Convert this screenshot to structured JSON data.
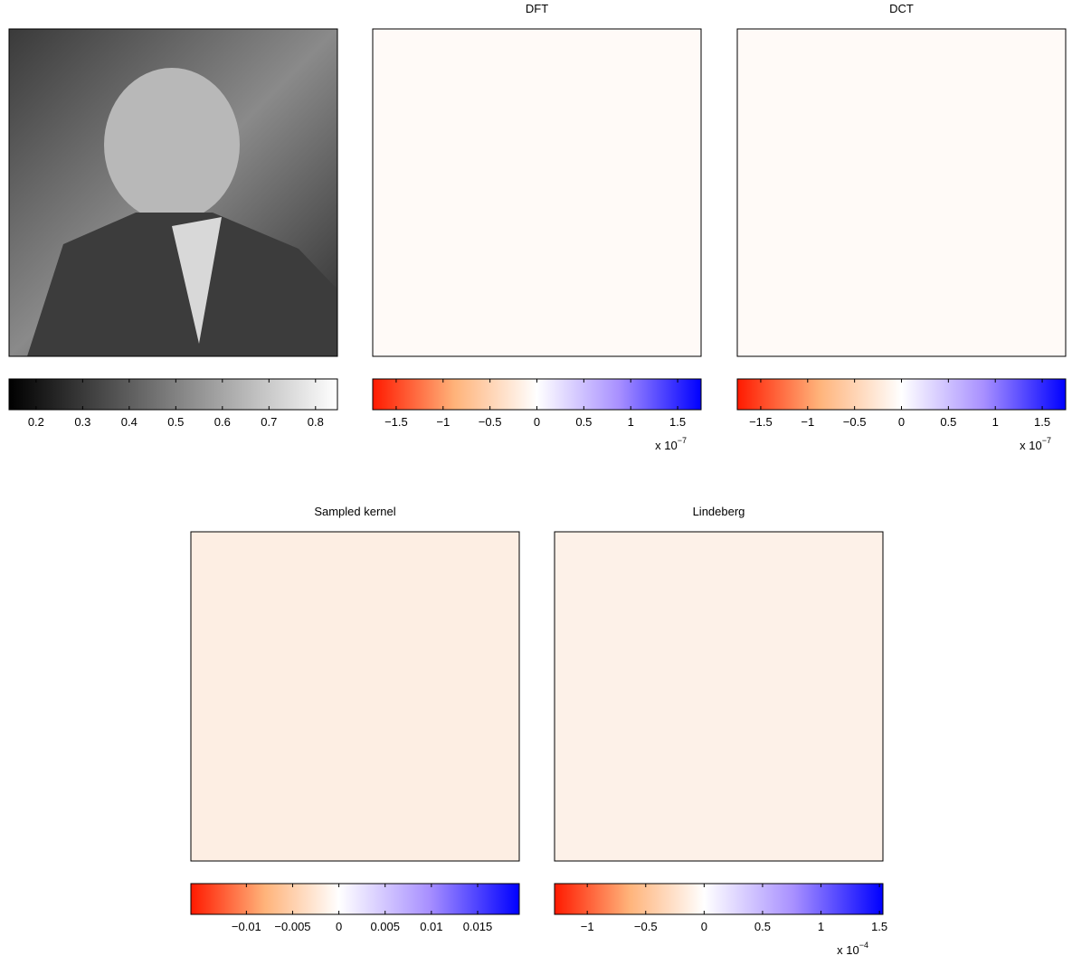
{
  "chart_data": [
    {
      "type": "image",
      "colormap": [
        "#000000",
        "#ffffff"
      ],
      "xlim": [
        0.142,
        0.847
      ],
      "xticks": [
        0.2,
        0.3,
        0.4,
        0.5,
        0.6,
        0.7,
        0.8
      ]
    },
    {
      "type": "image",
      "title": "DFT",
      "colormap": [
        "#ff1a00",
        "#ffffff",
        "#0000ff"
      ],
      "xlim": [
        -1.75,
        1.75
      ],
      "xticks": [
        {
          "value": -1.5,
          "label": "−1.5"
        },
        {
          "value": -1,
          "label": "−1"
        },
        {
          "value": -0.5,
          "label": "−0.5"
        },
        0,
        0.5,
        1,
        1.5
      ],
      "exponent_label": {
        "base": "x 10",
        "power": "−7"
      }
    },
    {
      "type": "image",
      "title": "DCT",
      "colormap": [
        "#ff1a00",
        "#ffffff",
        "#0000ff"
      ],
      "xlim": [
        -1.75,
        1.75
      ],
      "xticks": [
        {
          "value": -1.5,
          "label": "−1.5"
        },
        {
          "value": -1,
          "label": "−1"
        },
        {
          "value": -0.5,
          "label": "−0.5"
        },
        0,
        0.5,
        1,
        1.5
      ],
      "exponent_label": {
        "base": "x 10",
        "power": "−7"
      }
    },
    {
      "type": "image",
      "title": "Sampled kernel",
      "colormap": [
        "#ff1a00",
        "#ffffff",
        "#0000ff"
      ],
      "xlim": [
        -0.016,
        0.0195
      ],
      "xticks": [
        {
          "value": -0.01,
          "label": "−0.01"
        },
        {
          "value": -0.005,
          "label": "−0.005"
        },
        0,
        0.005,
        0.01,
        0.015
      ]
    },
    {
      "type": "image",
      "title": "Lindeberg",
      "colormap": [
        "#ff1a00",
        "#ffffff",
        "#0000ff"
      ],
      "xlim": [
        -1.28,
        1.53
      ],
      "xticks": [
        {
          "value": -1,
          "label": "−1"
        },
        {
          "value": -0.5,
          "label": "−0.5"
        },
        0,
        0.5,
        1,
        1.5
      ],
      "exponent_label": {
        "base": "x 10",
        "power": "−4"
      }
    }
  ]
}
